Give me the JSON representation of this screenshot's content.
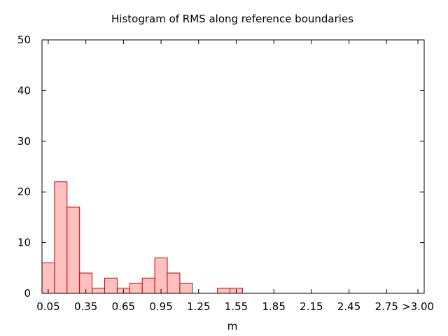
{
  "chart_data": {
    "type": "bar",
    "title": "Histogram of RMS along reference boundaries",
    "xlabel": "m",
    "ylabel": "",
    "ylim": [
      0,
      50
    ],
    "xlim": [
      0.0,
      3.05
    ],
    "bin_width": 0.1,
    "bar_fill": "#ffc0c0",
    "bar_stroke": "#cc0000",
    "grid": false,
    "yticks": [
      "0",
      "10",
      "20",
      "30",
      "40",
      "50"
    ],
    "xticks": [
      {
        "value": 0.05,
        "label": "0.05"
      },
      {
        "value": 0.35,
        "label": "0.35"
      },
      {
        "value": 0.65,
        "label": "0.65"
      },
      {
        "value": 0.95,
        "label": "0.95"
      },
      {
        "value": 1.25,
        "label": "1.25"
      },
      {
        "value": 1.55,
        "label": "1.55"
      },
      {
        "value": 1.85,
        "label": "1.85"
      },
      {
        "value": 2.15,
        "label": "2.15"
      },
      {
        "value": 2.45,
        "label": "2.45"
      },
      {
        "value": 2.75,
        "label": "2.75"
      },
      {
        "value": 3.0,
        "label": ">3.00"
      }
    ],
    "bins": [
      {
        "x": 0.05,
        "value": 6
      },
      {
        "x": 0.15,
        "value": 22
      },
      {
        "x": 0.25,
        "value": 17
      },
      {
        "x": 0.35,
        "value": 4
      },
      {
        "x": 0.45,
        "value": 1
      },
      {
        "x": 0.55,
        "value": 3
      },
      {
        "x": 0.65,
        "value": 1
      },
      {
        "x": 0.75,
        "value": 2
      },
      {
        "x": 0.85,
        "value": 3
      },
      {
        "x": 0.95,
        "value": 7
      },
      {
        "x": 1.05,
        "value": 4
      },
      {
        "x": 1.15,
        "value": 2
      },
      {
        "x": 1.45,
        "value": 1
      },
      {
        "x": 1.55,
        "value": 1
      }
    ]
  }
}
